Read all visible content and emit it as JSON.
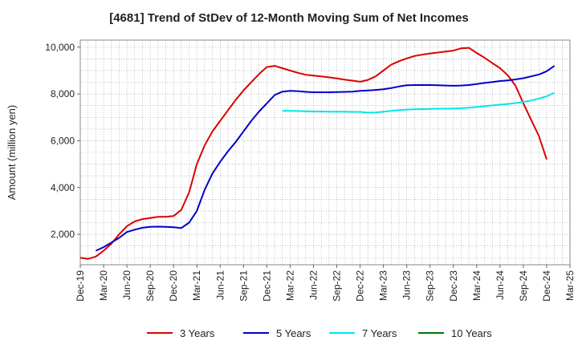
{
  "chart_data": {
    "type": "line",
    "title": "[4681]  Trend of StDev of 12-Month Moving Sum of Net Incomes",
    "xlabel": "",
    "ylabel": "Amount (million yen)",
    "ylim": [
      700,
      10300
    ],
    "yticks": [
      2000,
      4000,
      6000,
      8000,
      10000
    ],
    "ytick_labels": [
      "2,000",
      "4,000",
      "6,000",
      "8,000",
      "10,000"
    ],
    "x_start": "Dec-19",
    "x_end": "Mar-25",
    "xtick_labels": [
      "Dec-19",
      "Mar-20",
      "Jun-20",
      "Sep-20",
      "Dec-20",
      "Mar-21",
      "Jun-21",
      "Sep-21",
      "Dec-21",
      "Mar-22",
      "Jun-22",
      "Sep-22",
      "Dec-22",
      "Mar-23",
      "Jun-23",
      "Sep-23",
      "Dec-23",
      "Mar-24",
      "Jun-24",
      "Sep-24",
      "Dec-24",
      "Mar-25"
    ],
    "grid": true,
    "legend_position": "bottom",
    "series": [
      {
        "name": "3 Years",
        "color": "#dd0000",
        "start_month_index": 0,
        "values": [
          1000,
          950,
          1050,
          1300,
          1600,
          2000,
          2350,
          2550,
          2650,
          2700,
          2750,
          2750,
          2780,
          3050,
          3800,
          5000,
          5800,
          6400,
          6850,
          7300,
          7750,
          8150,
          8500,
          8850,
          9150,
          9200,
          9100,
          9000,
          8900,
          8820,
          8780,
          8750,
          8710,
          8660,
          8610,
          8570,
          8520,
          8600,
          8750,
          9000,
          9250,
          9400,
          9520,
          9620,
          9680,
          9730,
          9770,
          9810,
          9850,
          9950,
          9970,
          9750,
          9550,
          9320,
          9100,
          8800,
          8350,
          7600,
          6900,
          6200,
          5200
        ]
      },
      {
        "name": "5 Years",
        "color": "#0000cc",
        "start_month_index": 2,
        "values": [
          1300,
          1450,
          1650,
          1850,
          2100,
          2200,
          2280,
          2320,
          2330,
          2320,
          2300,
          2270,
          2500,
          3000,
          3900,
          4600,
          5100,
          5550,
          5950,
          6400,
          6850,
          7250,
          7600,
          7950,
          8100,
          8130,
          8120,
          8090,
          8070,
          8070,
          8070,
          8080,
          8090,
          8100,
          8130,
          8150,
          8170,
          8200,
          8250,
          8320,
          8370,
          8380,
          8380,
          8380,
          8370,
          8360,
          8350,
          8360,
          8380,
          8420,
          8470,
          8510,
          8550,
          8580,
          8620,
          8670,
          8750,
          8830,
          8970,
          9200
        ]
      },
      {
        "name": "7 Years",
        "color": "#00e5ee",
        "start_month_index": 26,
        "values": [
          7280,
          7280,
          7270,
          7260,
          7250,
          7250,
          7240,
          7240,
          7240,
          7230,
          7230,
          7200,
          7210,
          7240,
          7280,
          7310,
          7330,
          7340,
          7350,
          7360,
          7370,
          7370,
          7380,
          7390,
          7410,
          7440,
          7480,
          7510,
          7540,
          7570,
          7610,
          7660,
          7720,
          7800,
          7900,
          8050
        ]
      },
      {
        "name": "10 Years",
        "color": "#007700",
        "start_month_index": 0,
        "values": []
      }
    ]
  }
}
